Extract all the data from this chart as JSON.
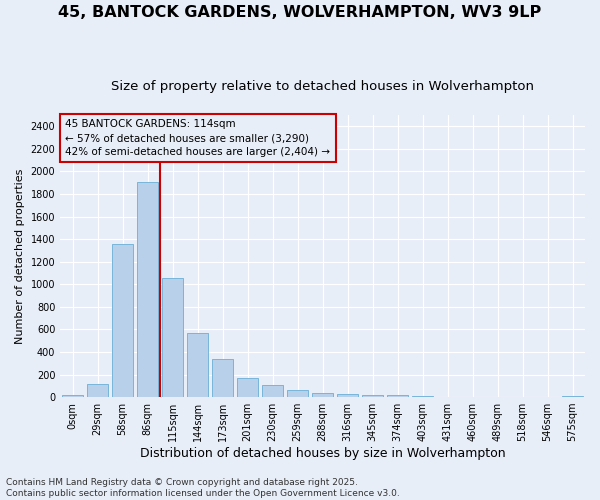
{
  "title": "45, BANTOCK GARDENS, WOLVERHAMPTON, WV3 9LP",
  "subtitle": "Size of property relative to detached houses in Wolverhampton",
  "xlabel": "Distribution of detached houses by size in Wolverhampton",
  "ylabel": "Number of detached properties",
  "bar_labels": [
    "0sqm",
    "29sqm",
    "58sqm",
    "86sqm",
    "115sqm",
    "144sqm",
    "173sqm",
    "201sqm",
    "230sqm",
    "259sqm",
    "288sqm",
    "316sqm",
    "345sqm",
    "374sqm",
    "403sqm",
    "431sqm",
    "460sqm",
    "489sqm",
    "518sqm",
    "546sqm",
    "575sqm"
  ],
  "bar_values": [
    15,
    120,
    1360,
    1910,
    1055,
    565,
    335,
    165,
    110,
    60,
    38,
    28,
    20,
    15,
    8,
    5,
    3,
    2,
    1,
    0,
    10
  ],
  "bar_color": "#b8d0ea",
  "bar_edge_color": "#6aaed6",
  "vline_color": "#cc0000",
  "annotation_text": "45 BANTOCK GARDENS: 114sqm\n← 57% of detached houses are smaller (3,290)\n42% of semi-detached houses are larger (2,404) →",
  "annotation_box_color": "#cc0000",
  "ylim": [
    0,
    2500
  ],
  "yticks": [
    0,
    200,
    400,
    600,
    800,
    1000,
    1200,
    1400,
    1600,
    1800,
    2000,
    2200,
    2400
  ],
  "footer": "Contains HM Land Registry data © Crown copyright and database right 2025.\nContains public sector information licensed under the Open Government Licence v3.0.",
  "bg_color": "#e8eef8",
  "grid_color": "#ffffff",
  "title_fontsize": 11.5,
  "subtitle_fontsize": 9.5,
  "xlabel_fontsize": 9,
  "ylabel_fontsize": 8,
  "tick_fontsize": 7,
  "ann_fontsize": 7.5,
  "footer_fontsize": 6.5
}
